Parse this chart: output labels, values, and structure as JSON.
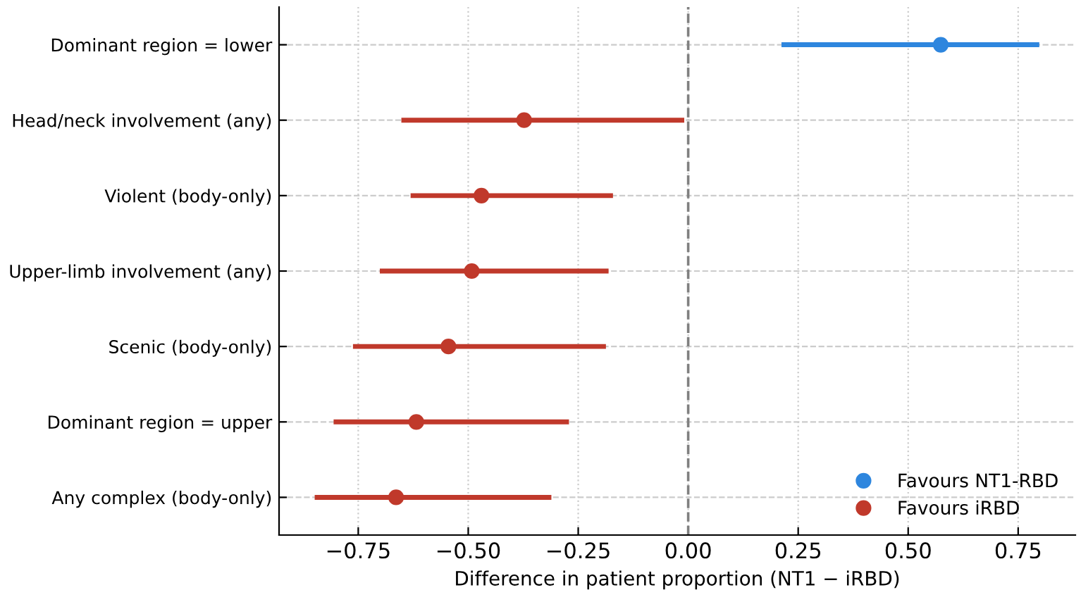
{
  "chart_data": {
    "type": "scatter",
    "orientation": "horizontal",
    "xlabel": "Difference in patient proportion (NT1 − iRBD)",
    "categories": [
      "Dominant region = lower",
      "Head/neck involvement (any)",
      "Violent (body-only)",
      "Upper-limb involvement (any)",
      "Scenic (body-only)",
      "Dominant region = upper",
      "Any complex (body-only)"
    ],
    "series": [
      {
        "name": "Favours NT1-RBD",
        "color": "#2e86de",
        "values": [
          0.574,
          null,
          null,
          null,
          null,
          null,
          null
        ],
        "errors": [
          [
            0.212,
            0.798
          ],
          null,
          null,
          null,
          null,
          null,
          null
        ]
      },
      {
        "name": "Favours iRBD",
        "color": "#c0392b",
        "values": [
          null,
          -0.373,
          -0.47,
          -0.492,
          -0.545,
          -0.618,
          -0.664
        ],
        "errors": [
          null,
          [
            -0.652,
            -0.009
          ],
          [
            -0.631,
            -0.171
          ],
          [
            -0.701,
            -0.181
          ],
          [
            -0.762,
            -0.187
          ],
          [
            -0.806,
            -0.271
          ],
          [
            -0.849,
            -0.311
          ]
        ]
      }
    ],
    "xlim": [
      -0.93,
      0.88
    ],
    "xticks": [
      {
        "value": -0.75,
        "label": "−0.75"
      },
      {
        "value": -0.5,
        "label": "−0.50"
      },
      {
        "value": -0.25,
        "label": "−0.25"
      },
      {
        "value": 0,
        "label": "0.00"
      },
      {
        "value": 0.25,
        "label": "0.25"
      },
      {
        "value": 0.5,
        "label": "0.50"
      },
      {
        "value": 0.75,
        "label": "0.75"
      }
    ],
    "ref_lines": [
      {
        "axis": "x",
        "value": 0,
        "color": "#808080",
        "line_style": "dashed"
      }
    ],
    "grid": true,
    "legend": "bottom right",
    "marker": "circle"
  }
}
